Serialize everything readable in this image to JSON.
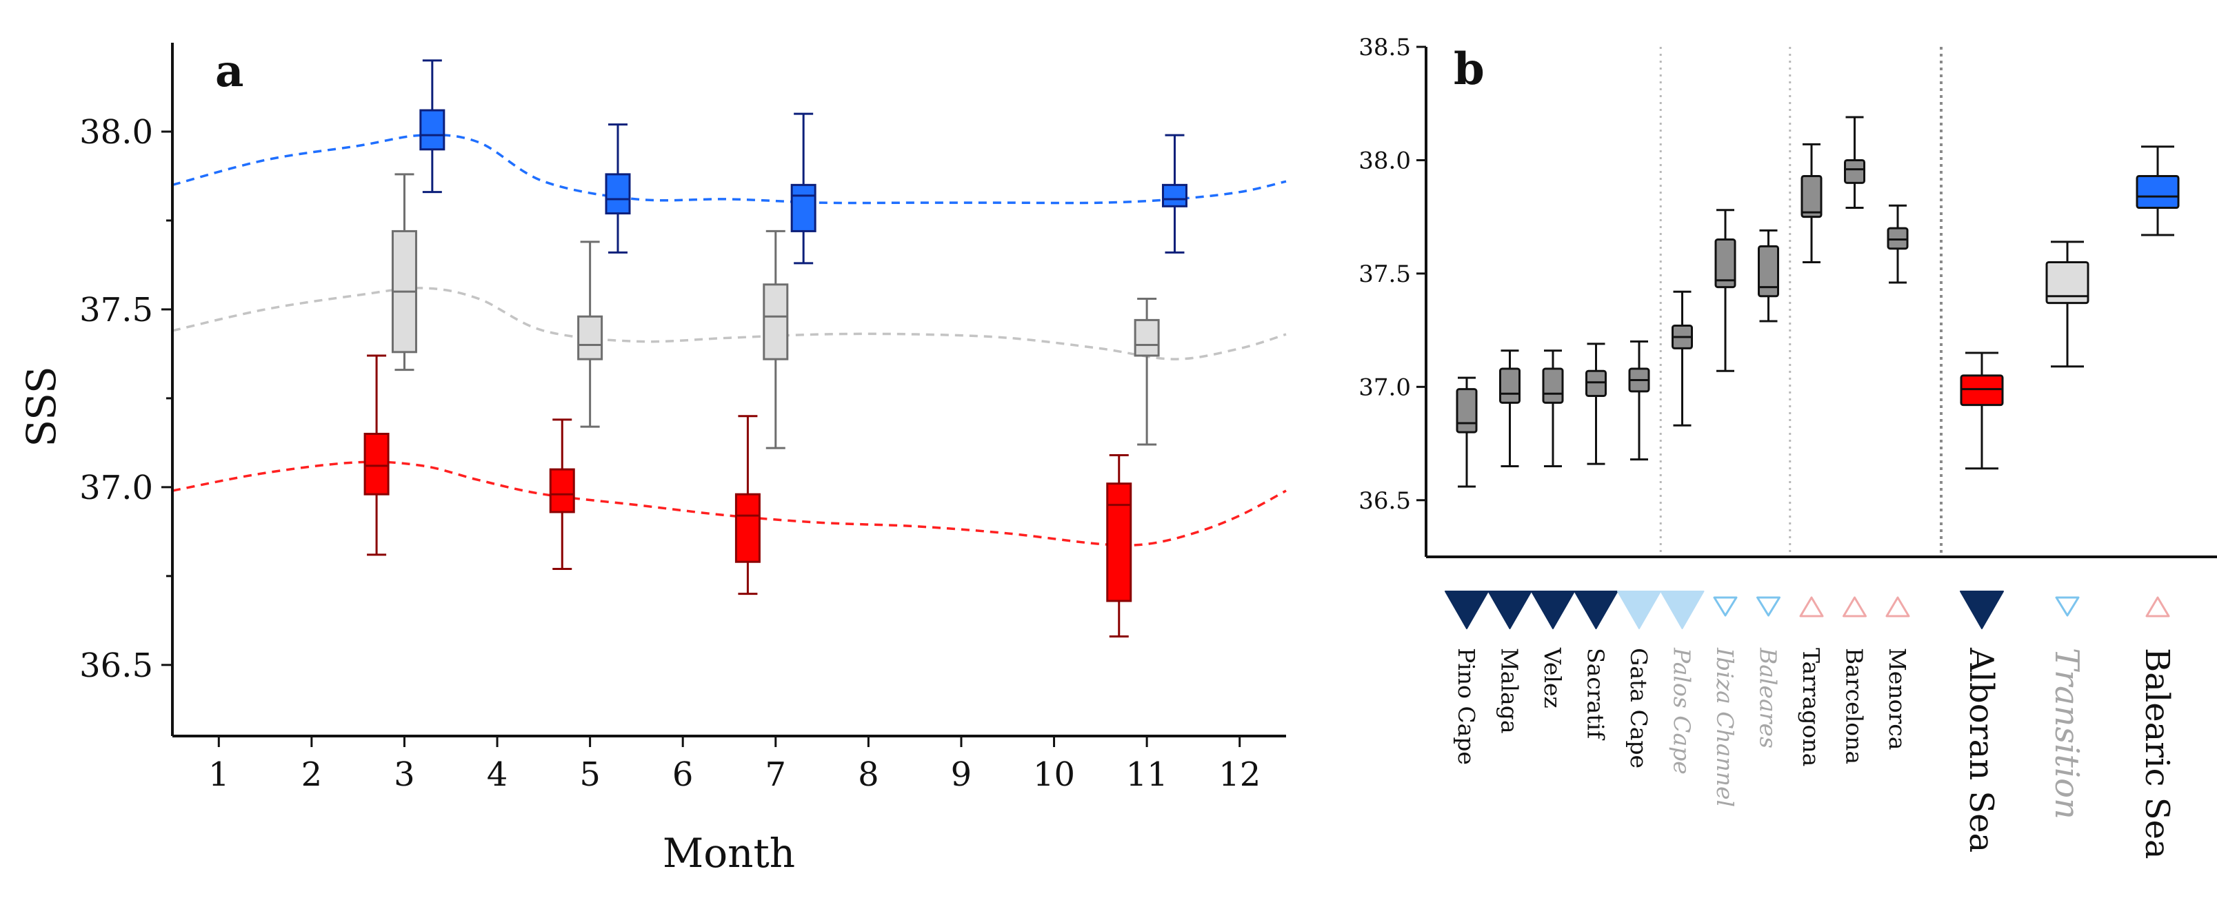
{
  "chart_data": [
    {
      "type": "box",
      "panel_label": "a",
      "xlabel": "Month",
      "ylabel": "SSS",
      "xlim": [
        0.5,
        12.5
      ],
      "ylim": [
        36.3,
        38.25
      ],
      "x_ticks": [
        1,
        2,
        3,
        4,
        5,
        6,
        7,
        8,
        9,
        10,
        11,
        12
      ],
      "y_ticks": [
        36.5,
        37.0,
        37.5,
        38.0
      ],
      "y_tick_labels": [
        "36.5",
        "37.0",
        "37.5",
        "38.0"
      ],
      "series": [
        {
          "name": "Balearic Sea",
          "fill": "#1f6fff",
          "stroke": "#0c1f7a",
          "median_color": "#0c1f7a",
          "boxes": [
            {
              "x": 3.3,
              "whislo": 37.83,
              "q1": 37.95,
              "med": 37.99,
              "q3": 38.06,
              "whishi": 38.2
            },
            {
              "x": 5.3,
              "whislo": 37.66,
              "q1": 37.77,
              "med": 37.81,
              "q3": 37.88,
              "whishi": 38.02
            },
            {
              "x": 7.3,
              "whislo": 37.63,
              "q1": 37.72,
              "med": 37.82,
              "q3": 37.85,
              "whishi": 38.05
            },
            {
              "x": 11.3,
              "whislo": 37.66,
              "q1": 37.79,
              "med": 37.81,
              "q3": 37.85,
              "whishi": 37.99
            }
          ],
          "trend": {
            "color": "#1f6fff",
            "x": [
              0.5,
              1.5,
              2.5,
              3.2,
              3.8,
              4.5,
              5.5,
              6.5,
              7.5,
              8.5,
              9.5,
              10.5,
              11.3,
              12.0,
              12.5
            ],
            "y": [
              37.85,
              37.92,
              37.96,
              37.99,
              37.97,
              37.86,
              37.81,
              37.81,
              37.8,
              37.8,
              37.8,
              37.8,
              37.81,
              37.83,
              37.86
            ]
          }
        },
        {
          "name": "Transition",
          "fill": "#dddddd",
          "stroke": "#6e6e6e",
          "median_color": "#6e6e6e",
          "boxes": [
            {
              "x": 3.0,
              "whislo": 37.33,
              "q1": 37.38,
              "med": 37.55,
              "q3": 37.72,
              "whishi": 37.88
            },
            {
              "x": 5.0,
              "whislo": 37.17,
              "q1": 37.36,
              "med": 37.4,
              "q3": 37.48,
              "whishi": 37.69
            },
            {
              "x": 7.0,
              "whislo": 37.11,
              "q1": 37.36,
              "med": 37.48,
              "q3": 37.57,
              "whishi": 37.72
            },
            {
              "x": 11.0,
              "whislo": 37.12,
              "q1": 37.37,
              "med": 37.4,
              "q3": 37.47,
              "whishi": 37.53
            }
          ],
          "trend": {
            "color": "#c4c4c4",
            "x": [
              0.5,
              1.5,
              2.5,
              3.2,
              3.8,
              4.5,
              5.5,
              6.5,
              7.5,
              8.5,
              9.5,
              10.5,
              11.3,
              12.0,
              12.5
            ],
            "y": [
              37.44,
              37.5,
              37.54,
              37.56,
              37.53,
              37.44,
              37.41,
              37.42,
              37.43,
              37.43,
              37.42,
              37.39,
              37.36,
              37.39,
              37.43
            ]
          }
        },
        {
          "name": "Alboran Sea",
          "fill": "#ff0000",
          "stroke": "#8a0000",
          "median_color": "#8a0000",
          "boxes": [
            {
              "x": 2.7,
              "whislo": 36.81,
              "q1": 36.98,
              "med": 37.06,
              "q3": 37.15,
              "whishi": 37.37
            },
            {
              "x": 4.7,
              "whislo": 36.77,
              "q1": 36.93,
              "med": 36.98,
              "q3": 37.05,
              "whishi": 37.19
            },
            {
              "x": 6.7,
              "whislo": 36.7,
              "q1": 36.79,
              "med": 36.92,
              "q3": 36.98,
              "whishi": 37.2
            },
            {
              "x": 10.7,
              "whislo": 36.58,
              "q1": 36.68,
              "med": 36.95,
              "q3": 37.01,
              "whishi": 37.09
            }
          ],
          "trend": {
            "color": "#ff2020",
            "x": [
              0.5,
              1.5,
              2.5,
              3.2,
              3.8,
              4.5,
              5.5,
              6.5,
              7.5,
              8.5,
              9.5,
              10.5,
              11.0,
              11.5,
              12.0,
              12.5
            ],
            "y": [
              36.99,
              37.04,
              37.07,
              37.06,
              37.02,
              36.98,
              36.95,
              36.92,
              36.9,
              36.89,
              36.87,
              36.84,
              36.84,
              36.87,
              36.92,
              36.99
            ]
          }
        }
      ]
    },
    {
      "type": "box",
      "panel_label": "b",
      "xlabel": "",
      "ylabel": "",
      "ylim": [
        36.25,
        38.5
      ],
      "y_ticks": [
        36.5,
        37.0,
        37.5,
        38.0,
        38.5
      ],
      "y_tick_labels": [
        "36.5",
        "37.0",
        "37.5",
        "38.0",
        "38.5"
      ],
      "separators_after_index": [
        4,
        7,
        10
      ],
      "categories": [
        {
          "label": "Pino Cape",
          "label_color": "#111111",
          "italic": false,
          "size": "small",
          "marker": "filled-down",
          "marker_color": "#0b2a5c",
          "fill": "#8e8e8e",
          "stroke": "#111111",
          "whislo": 36.56,
          "q1": 36.8,
          "med": 36.84,
          "q3": 36.99,
          "whishi": 37.04
        },
        {
          "label": "Malaga",
          "label_color": "#111111",
          "italic": false,
          "size": "small",
          "marker": "filled-down",
          "marker_color": "#0b2a5c",
          "fill": "#8e8e8e",
          "stroke": "#111111",
          "whislo": 36.65,
          "q1": 36.93,
          "med": 36.97,
          "q3": 37.08,
          "whishi": 37.16
        },
        {
          "label": "Velez",
          "label_color": "#111111",
          "italic": false,
          "size": "small",
          "marker": "filled-down",
          "marker_color": "#0b2a5c",
          "fill": "#8e8e8e",
          "stroke": "#111111",
          "whislo": 36.65,
          "q1": 36.93,
          "med": 36.97,
          "q3": 37.08,
          "whishi": 37.16
        },
        {
          "label": "Sacratif",
          "label_color": "#111111",
          "italic": false,
          "size": "small",
          "marker": "filled-down",
          "marker_color": "#0b2a5c",
          "fill": "#8e8e8e",
          "stroke": "#111111",
          "whislo": 36.66,
          "q1": 36.96,
          "med": 37.02,
          "q3": 37.07,
          "whishi": 37.19
        },
        {
          "label": "Gata Cape",
          "label_color": "#111111",
          "italic": false,
          "size": "small",
          "marker": "filled-down",
          "marker_color": "#b7dcf5",
          "fill": "#8e8e8e",
          "stroke": "#111111",
          "whislo": 36.68,
          "q1": 36.98,
          "med": 37.03,
          "q3": 37.08,
          "whishi": 37.2
        },
        {
          "label": "Palos Cape",
          "label_color": "#a6a6a6",
          "italic": true,
          "size": "small",
          "marker": "filled-down",
          "marker_color": "#b7dcf5",
          "fill": "#8e8e8e",
          "stroke": "#111111",
          "whislo": 36.83,
          "q1": 37.17,
          "med": 37.22,
          "q3": 37.27,
          "whishi": 37.42
        },
        {
          "label": "Ibiza Channel",
          "label_color": "#a6a6a6",
          "italic": true,
          "size": "small",
          "marker": "open-down",
          "marker_color": "#7cc4ee",
          "fill": "#8e8e8e",
          "stroke": "#111111",
          "whislo": 37.07,
          "q1": 37.44,
          "med": 37.47,
          "q3": 37.65,
          "whishi": 37.78
        },
        {
          "label": "Baleares",
          "label_color": "#a6a6a6",
          "italic": true,
          "size": "small",
          "marker": "open-down",
          "marker_color": "#7cc4ee",
          "fill": "#8e8e8e",
          "stroke": "#111111",
          "whislo": 37.29,
          "q1": 37.4,
          "med": 37.44,
          "q3": 37.62,
          "whishi": 37.69
        },
        {
          "label": "Tarragona",
          "label_color": "#111111",
          "italic": false,
          "size": "small",
          "marker": "open-up",
          "marker_color": "#f0a8a8",
          "fill": "#8e8e8e",
          "stroke": "#111111",
          "whislo": 37.55,
          "q1": 37.75,
          "med": 37.77,
          "q3": 37.93,
          "whishi": 38.07
        },
        {
          "label": "Barcelona",
          "label_color": "#111111",
          "italic": false,
          "size": "small",
          "marker": "open-up",
          "marker_color": "#f0a8a8",
          "fill": "#8e8e8e",
          "stroke": "#111111",
          "whislo": 37.79,
          "q1": 37.9,
          "med": 37.96,
          "q3": 38.0,
          "whishi": 38.19
        },
        {
          "label": "Menorca",
          "label_color": "#111111",
          "italic": false,
          "size": "small",
          "marker": "open-up",
          "marker_color": "#f0a8a8",
          "fill": "#8e8e8e",
          "stroke": "#111111",
          "whislo": 37.46,
          "q1": 37.61,
          "med": 37.65,
          "q3": 37.7,
          "whishi": 37.8
        },
        {
          "label": "Alboran Sea",
          "label_color": "#111111",
          "italic": false,
          "size": "large",
          "marker": "filled-down",
          "marker_color": "#0b2a5c",
          "fill": "#ff0000",
          "stroke": "#111111",
          "whislo": 36.64,
          "q1": 36.92,
          "med": 36.99,
          "q3": 37.05,
          "whishi": 37.15
        },
        {
          "label": "Transition",
          "label_color": "#a6a6a6",
          "italic": true,
          "size": "large",
          "marker": "open-down",
          "marker_color": "#7cc4ee",
          "fill": "#dddddd",
          "stroke": "#111111",
          "whislo": 37.09,
          "q1": 37.37,
          "med": 37.4,
          "q3": 37.55,
          "whishi": 37.64
        },
        {
          "label": "Balearic Sea",
          "label_color": "#111111",
          "italic": false,
          "size": "large",
          "marker": "open-up",
          "marker_color": "#f0a8a8",
          "fill": "#1f6fff",
          "stroke": "#111111",
          "whislo": 37.67,
          "q1": 37.79,
          "med": 37.84,
          "q3": 37.93,
          "whishi": 38.06
        }
      ]
    }
  ]
}
